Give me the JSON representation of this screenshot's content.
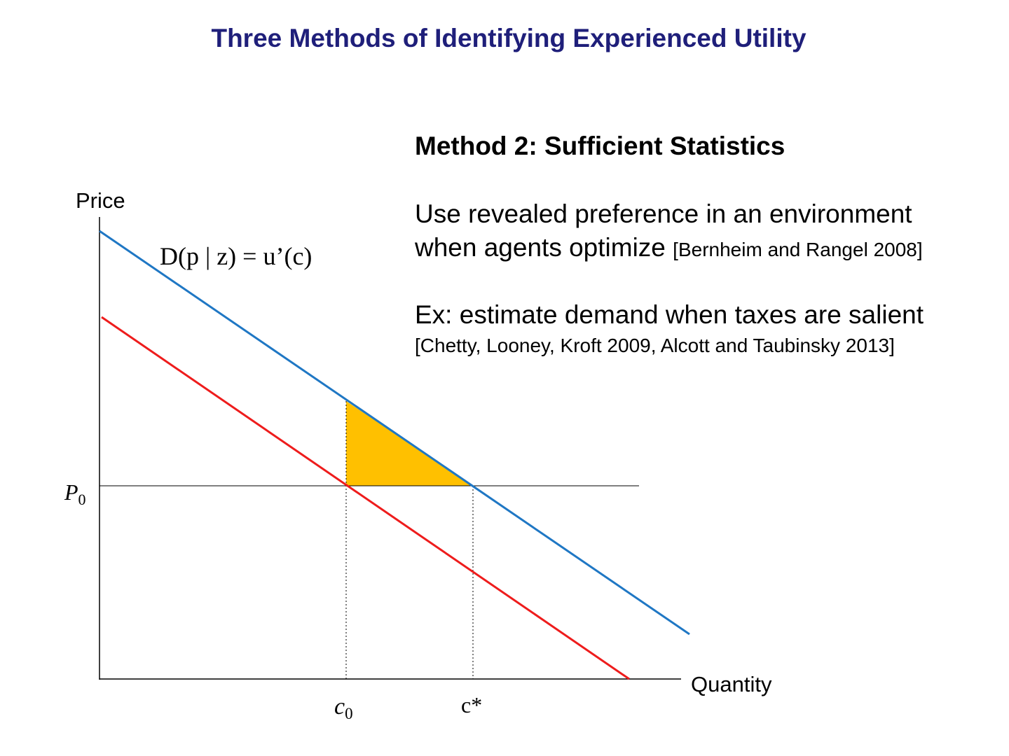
{
  "slide": {
    "title": "Three Methods of Identifying Experienced Utility",
    "method_heading": "Method 2: Sufficient Statistics",
    "para1": {
      "line1": "Use revealed preference in an environment",
      "line2": "when agents optimize",
      "citation": "[Bernheim and Rangel 2008]"
    },
    "para2": {
      "line1": "Ex: estimate demand when taxes are salient",
      "line2": "[Chetty, Looney, Kroft 2009, Alcott and Taubinsky 2013]"
    }
  },
  "diagram": {
    "y_axis_label": "Price",
    "x_axis_label": "Quantity",
    "demand_label": "D(p | z) = u’(c)",
    "p0_label": "P",
    "p0_subscript": "0",
    "c0_label": "c",
    "c0_subscript": "0",
    "cstar_label": "c*",
    "colors": {
      "demand_curve": "#1f77c4",
      "shifted_curve": "#ee1c1c",
      "triangle": "#ffc000",
      "axes": "#000000",
      "title": "#1f1f7a"
    }
  }
}
